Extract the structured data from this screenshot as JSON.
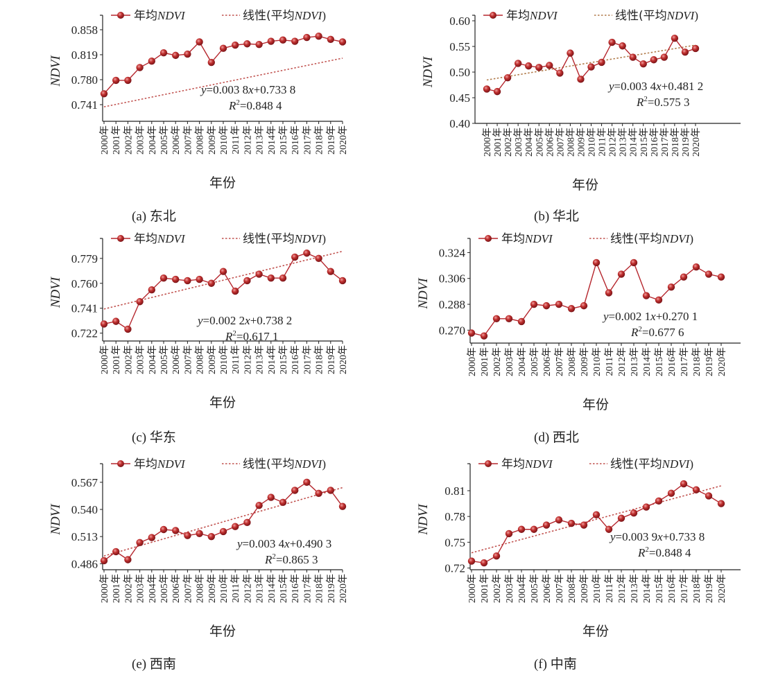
{
  "figure": {
    "legend": {
      "series_label_prefix": "年均",
      "series_label_italic": "NDVI",
      "trend_label_prefix": "线性(平均",
      "trend_label_italic": "NDVI",
      "trend_label_suffix": ")"
    },
    "colors": {
      "series": "#b5262d",
      "marker": "#b5262d",
      "trend": "#c0504d",
      "trend_b": "#b07a4a",
      "axis": "#222222"
    }
  },
  "chart_data": [
    {
      "id": "a",
      "type": "line",
      "caption": "(a) 东北",
      "xlabel": "年份",
      "ylabel": "NDVI",
      "categories": [
        "2000年",
        "2001年",
        "2002年",
        "2003年",
        "2004年",
        "2005年",
        "2006年",
        "2007年",
        "2008年",
        "2009年",
        "2010年",
        "2011年",
        "2012年",
        "2013年",
        "2014年",
        "2015年",
        "2016年",
        "2017年",
        "2018年",
        "2019年",
        "2020年"
      ],
      "yticks": [
        "0.741",
        "0.780",
        "0.819",
        "0.858"
      ],
      "ylim": [
        0.715,
        0.872
      ],
      "series": [
        {
          "name": "年均NDVI",
          "values": [
            0.758,
            0.779,
            0.779,
            0.799,
            0.809,
            0.822,
            0.818,
            0.82,
            0.839,
            0.807,
            0.829,
            0.834,
            0.836,
            0.835,
            0.84,
            0.842,
            0.84,
            0.846,
            0.848,
            0.843,
            0.839
          ]
        }
      ],
      "trend": {
        "name": "线性(平均NDVI)",
        "slope": 0.0038,
        "intercept": 0.7338,
        "visible": true
      },
      "equation": "y=0.003 8x+0.733 8",
      "r2_label": "R",
      "r2_value": "=0.848 4"
    },
    {
      "id": "b",
      "type": "line",
      "caption": "(b) 华北",
      "xlabel": "年份",
      "ylabel": "NDVI",
      "categories": [
        "2000年",
        "2001年",
        "2002年",
        "2003年",
        "2004年",
        "2005年",
        "2006年",
        "2007年",
        "2008年",
        "2009年",
        "2010年",
        "2011年",
        "2012年",
        "2013年",
        "2014年",
        "2015年",
        "2016年",
        "2017年",
        "2018年",
        "2019年",
        "2020年"
      ],
      "yticks": [
        "0.40",
        "0.45",
        "0.50",
        "0.55",
        "0.60"
      ],
      "ylim": [
        0.4,
        0.6
      ],
      "series": [
        {
          "name": "年均NDVI",
          "values": [
            0.467,
            0.462,
            0.489,
            0.517,
            0.512,
            0.509,
            0.513,
            0.498,
            0.537,
            0.486,
            0.51,
            0.519,
            0.558,
            0.551,
            0.529,
            0.516,
            0.524,
            0.529,
            0.566,
            0.539,
            0.546
          ]
        }
      ],
      "trend": {
        "name": "线性(平均NDVI)",
        "slope": 0.0034,
        "intercept": 0.4812,
        "visible": true
      },
      "equation": "y=0.003 4x+0.481 2",
      "r2_label": "R",
      "r2_value": "=0.575 3"
    },
    {
      "id": "c",
      "type": "line",
      "caption": "(c) 华东",
      "xlabel": "年份",
      "ylabel": "NDVI",
      "categories": [
        "2000年",
        "2001年",
        "2002年",
        "2003年",
        "2004年",
        "2005年",
        "2006年",
        "2007年",
        "2008年",
        "2009年",
        "2010年",
        "2011年",
        "2012年",
        "2013年",
        "2014年",
        "2015年",
        "2016年",
        "2017年",
        "2018年",
        "2019年",
        "2020年"
      ],
      "yticks": [
        "0.722",
        "0.741",
        "0.760",
        "0.779"
      ],
      "ylim": [
        0.716,
        0.79
      ],
      "series": [
        {
          "name": "年均NDVI",
          "values": [
            0.729,
            0.731,
            0.725,
            0.746,
            0.755,
            0.764,
            0.763,
            0.762,
            0.763,
            0.76,
            0.769,
            0.754,
            0.762,
            0.767,
            0.764,
            0.764,
            0.78,
            0.783,
            0.779,
            0.769,
            0.762
          ]
        }
      ],
      "trend": {
        "name": "线性(平均NDVI)",
        "slope": 0.0022,
        "intercept": 0.7382,
        "visible": true
      },
      "equation": "y=0.002 2x+0.738 2",
      "r2_label": "R",
      "r2_value": "=0.617 1"
    },
    {
      "id": "d",
      "type": "line",
      "caption": "(d) 西北",
      "xlabel": "年份",
      "ylabel": "NDVI",
      "categories": [
        "2000年",
        "2001年",
        "2002年",
        "2003年",
        "2004年",
        "2005年",
        "2006年",
        "2007年",
        "2008年",
        "2009年",
        "2010年",
        "2011年",
        "2012年",
        "2013年",
        "2014年",
        "2015年",
        "2016年",
        "2017年",
        "2018年",
        "2019年",
        "2020年"
      ],
      "yticks": [
        "0.270",
        "0.288",
        "0.306",
        "0.324"
      ],
      "ylim": [
        0.261,
        0.33
      ],
      "series": [
        {
          "name": "年均NDVI",
          "values": [
            0.268,
            0.266,
            0.278,
            0.278,
            0.276,
            0.288,
            0.287,
            0.288,
            0.285,
            0.287,
            0.317,
            0.296,
            0.309,
            0.317,
            0.294,
            0.291,
            0.3,
            0.307,
            0.314,
            0.309,
            0.307
          ]
        }
      ],
      "trend": {
        "name": "线性(平均NDVI)",
        "slope": 0.0021,
        "intercept": 0.2701,
        "visible": false
      },
      "equation": "y=0.002 1x+0.270 1",
      "r2_label": "R",
      "r2_value": "=0.677 6"
    },
    {
      "id": "e",
      "type": "line",
      "caption": "(e) 西南",
      "xlabel": "年份",
      "ylabel": "NDVI",
      "categories": [
        "2000年",
        "2001年",
        "2002年",
        "2003年",
        "2004年",
        "2005年",
        "2006年",
        "2007年",
        "2008年",
        "2009年",
        "2010年",
        "2011年",
        "2012年",
        "2013年",
        "2014年",
        "2015年",
        "2016年",
        "2017年",
        "2018年",
        "2019年",
        "2020年"
      ],
      "yticks": [
        "0.486",
        "0.513",
        "0.540",
        "0.567"
      ],
      "ylim": [
        0.48,
        0.58
      ],
      "series": [
        {
          "name": "年均NDVI",
          "values": [
            0.489,
            0.498,
            0.49,
            0.507,
            0.512,
            0.52,
            0.519,
            0.514,
            0.516,
            0.513,
            0.518,
            0.523,
            0.527,
            0.544,
            0.552,
            0.547,
            0.559,
            0.567,
            0.556,
            0.559,
            0.543
          ]
        }
      ],
      "trend": {
        "name": "线性(平均NDVI)",
        "slope": 0.0034,
        "intercept": 0.4903,
        "visible": true
      },
      "equation": "y=0.003 4x+0.490 3",
      "r2_label": "R",
      "r2_value": "=0.865 3"
    },
    {
      "id": "f",
      "type": "line",
      "caption": "(f) 中南",
      "xlabel": "年份",
      "ylabel": "NDVI",
      "categories": [
        "2000年",
        "2001年",
        "2002年",
        "2003年",
        "2004年",
        "2005年",
        "2006年",
        "2007年",
        "2008年",
        "2009年",
        "2010年",
        "2011年",
        "2012年",
        "2013年",
        "2014年",
        "2015年",
        "2016年",
        "2017年",
        "2018年",
        "2019年",
        "2020年"
      ],
      "yticks": [
        "0.72",
        "0.75",
        "0.78",
        "0.81"
      ],
      "ylim": [
        0.718,
        0.835
      ],
      "series": [
        {
          "name": "年均NDVI",
          "values": [
            0.728,
            0.726,
            0.734,
            0.76,
            0.765,
            0.765,
            0.77,
            0.776,
            0.772,
            0.77,
            0.782,
            0.765,
            0.778,
            0.784,
            0.791,
            0.798,
            0.807,
            0.818,
            0.811,
            0.804,
            0.795
          ]
        }
      ],
      "trend": {
        "name": "线性(平均NDVI)",
        "slope": 0.0039,
        "intercept": 0.7338,
        "visible": true
      },
      "equation": "y=0.003 9x+0.733 8",
      "r2_label": "R",
      "r2_value": "=0.848 4"
    }
  ]
}
